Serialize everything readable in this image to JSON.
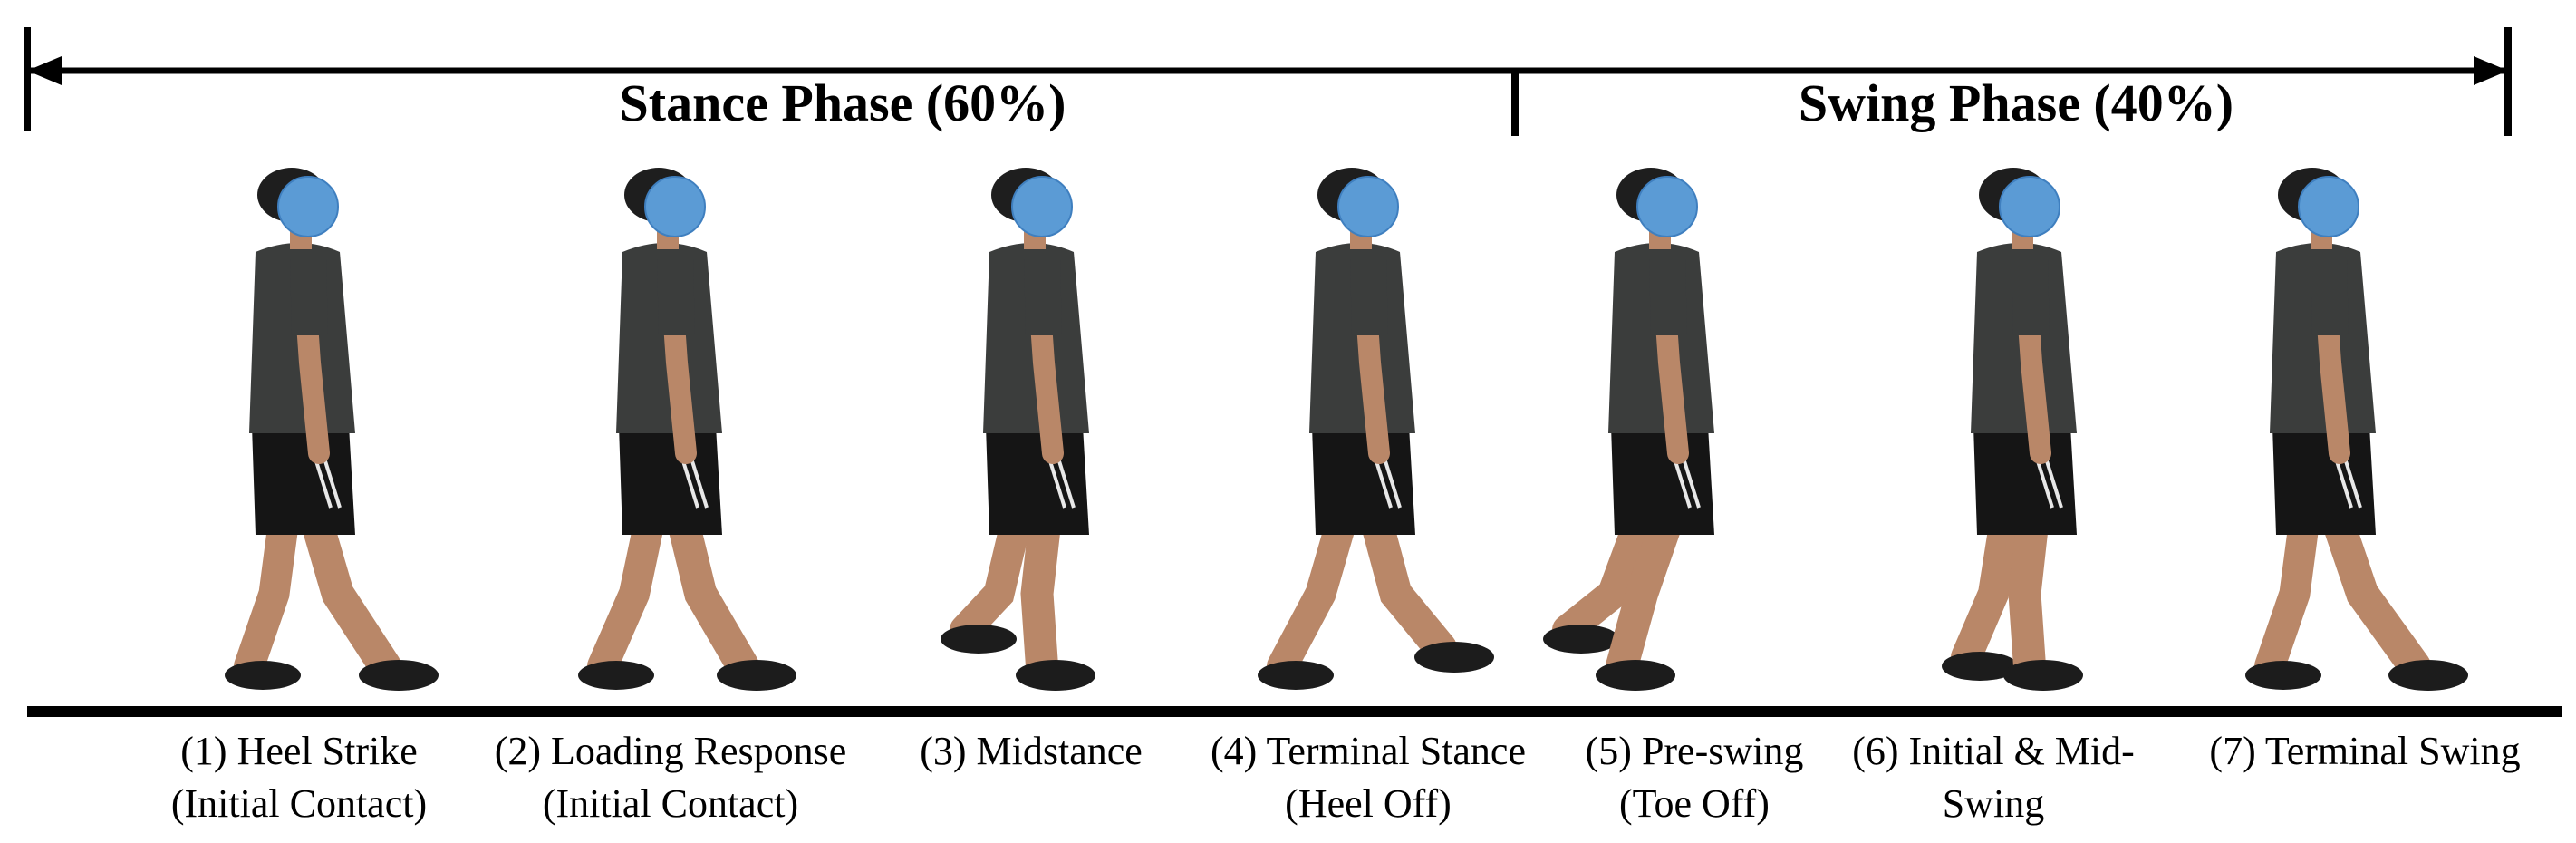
{
  "phases": {
    "stance": {
      "label": "Stance Phase (60%)"
    },
    "swing": {
      "label": "Swing Phase (40%)"
    }
  },
  "figures": [
    {
      "line1": "(1) Heel Strike",
      "line2": "(Initial Contact)"
    },
    {
      "line1": "(2) Loading Response",
      "line2": "(Initial Contact)"
    },
    {
      "line1": "(3) Midstance",
      "line2": ""
    },
    {
      "line1": "(4) Terminal Stance",
      "line2": "(Heel Off)"
    },
    {
      "line1": "(5) Pre-swing",
      "line2": "(Toe Off)"
    },
    {
      "line1": "(6) Initial & Mid-",
      "line2": "Swing"
    },
    {
      "line1": "(7) Terminal Swing",
      "line2": ""
    }
  ],
  "colors": {
    "face_mask": "#5b9bd5",
    "hair": "#1e1e1e",
    "shirt": "#3b3d3c",
    "shorts": "#151515",
    "skin": "#b98768",
    "shoe": "#1c1c1c",
    "line": "#000000"
  }
}
